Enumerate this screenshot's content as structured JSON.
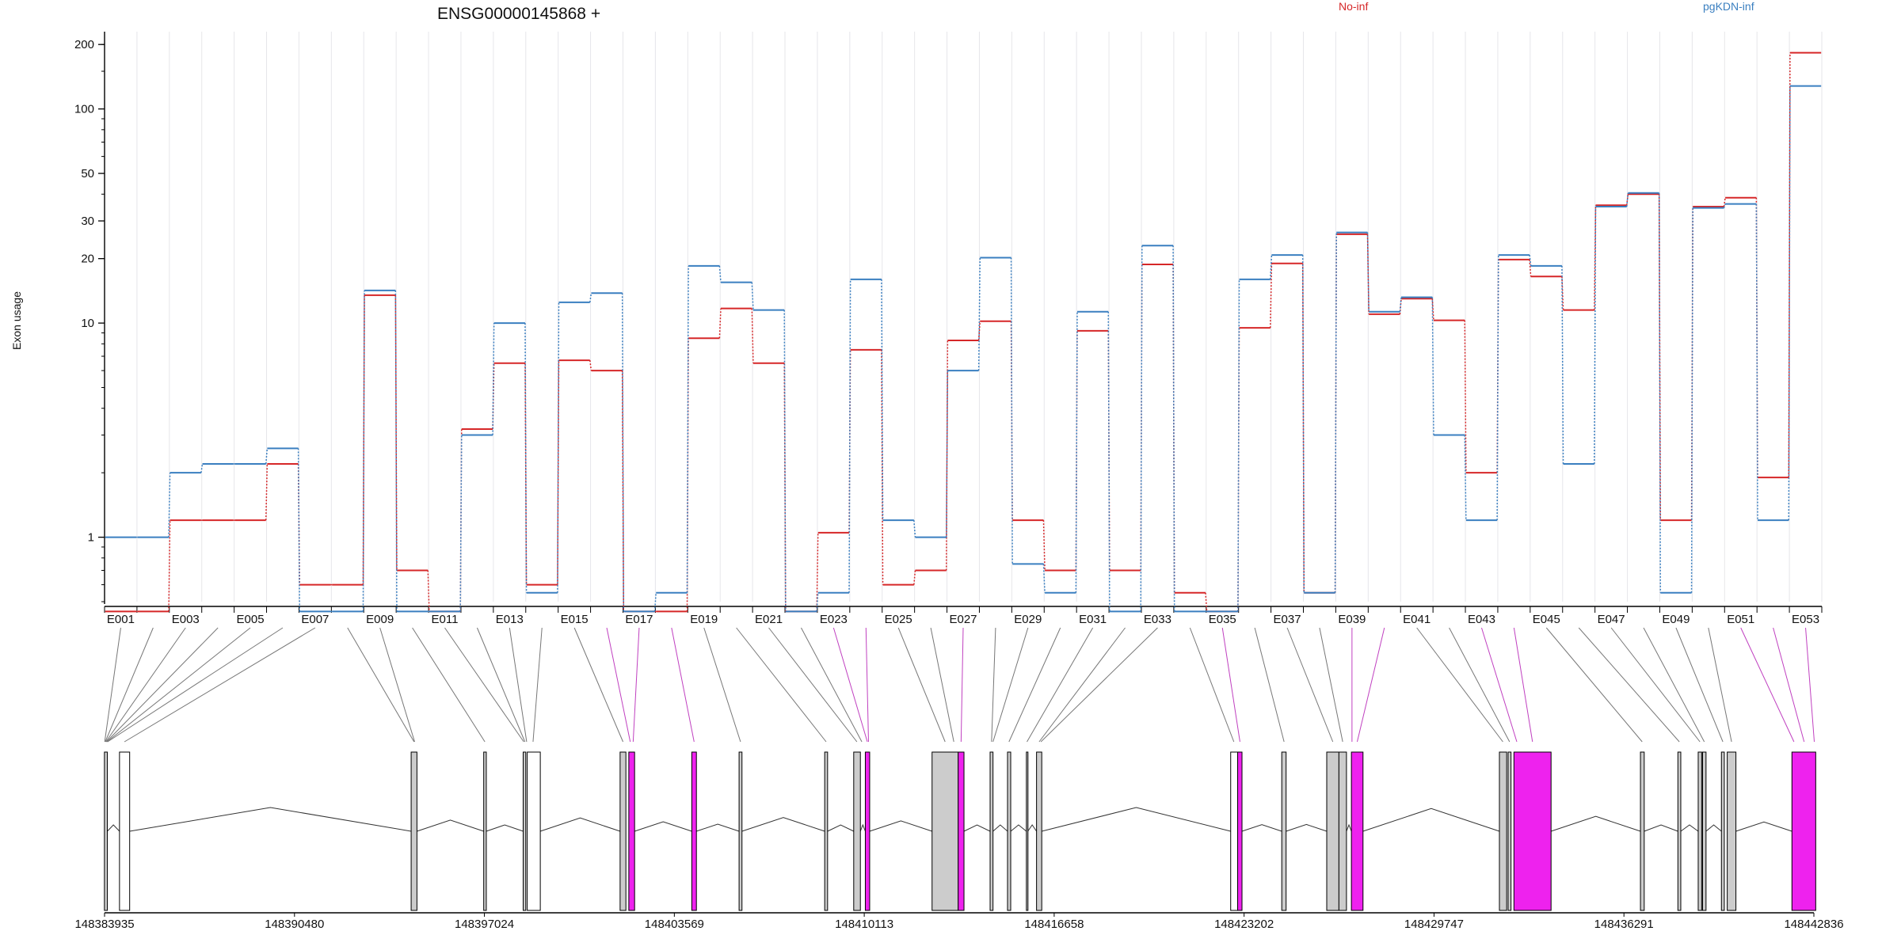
{
  "chart_data": {
    "type": "line",
    "title": "ENSG00000145868 +",
    "ylabel": "Exon usage",
    "xlabel": "",
    "yscale": "log",
    "ylim": [
      0.5,
      220
    ],
    "yticks": [
      1,
      10,
      20,
      30,
      50,
      100,
      200
    ],
    "ytick_labels": [
      "1",
      "10",
      "20",
      "30",
      "50",
      "100",
      "200"
    ],
    "grid": "vertical",
    "legend_position": "top",
    "exons": [
      "E001",
      "E002",
      "E003",
      "E004",
      "E005",
      "E006",
      "E007",
      "E008",
      "E009",
      "E010",
      "E011",
      "E012",
      "E013",
      "E014",
      "E015",
      "E016",
      "E017",
      "E018",
      "E019",
      "E020",
      "E021",
      "E022",
      "E023",
      "E024",
      "E025",
      "E026",
      "E027",
      "E028",
      "E029",
      "E030",
      "E031",
      "E032",
      "E033",
      "E034",
      "E035",
      "E036",
      "E037",
      "E038",
      "E039",
      "E040",
      "E041",
      "E042",
      "E043",
      "E044",
      "E045",
      "E046",
      "E047",
      "E048",
      "E049",
      "E050",
      "E051",
      "E052",
      "E053"
    ],
    "x_tick_labels": [
      "E001",
      "E003",
      "E005",
      "E007",
      "E009",
      "E011",
      "E013",
      "E015",
      "E017",
      "E019",
      "E021",
      "E023",
      "E025",
      "E027",
      "E029",
      "E031",
      "E033",
      "E035",
      "E037",
      "E039",
      "E041",
      "E043",
      "E045",
      "E047",
      "E049",
      "E051",
      "E053"
    ],
    "series": [
      {
        "name": "No-inf",
        "color": "#d62728",
        "values": [
          0.45,
          0.45,
          1.2,
          1.2,
          1.2,
          2.2,
          0.6,
          0.6,
          13.5,
          0.7,
          0.45,
          3.2,
          6.5,
          0.6,
          6.7,
          6.0,
          0.45,
          0.45,
          8.5,
          11.7,
          6.5,
          0.45,
          1.05,
          7.5,
          0.6,
          0.7,
          8.3,
          10.2,
          1.2,
          0.7,
          9.2,
          0.7,
          18.8,
          0.55,
          0.45,
          9.5,
          19.0,
          0.55,
          26.0,
          11.0,
          13.0,
          10.3,
          2.0,
          19.8,
          16.5,
          11.5,
          35.5,
          40.0,
          1.2,
          35.0,
          38.5,
          1.9,
          183
        ]
      },
      {
        "name": "pgKDN-inf",
        "color": "#3a7fc0",
        "values": [
          1.0,
          1.0,
          2.0,
          2.2,
          2.2,
          2.6,
          0.45,
          0.45,
          14.2,
          0.45,
          0.45,
          3.0,
          10.0,
          0.55,
          12.5,
          13.8,
          0.45,
          0.55,
          18.5,
          15.5,
          11.5,
          0.45,
          0.55,
          16.0,
          1.2,
          1.0,
          6.0,
          20.2,
          0.75,
          0.55,
          11.3,
          0.45,
          23.0,
          0.45,
          0.45,
          16.0,
          20.8,
          0.55,
          26.5,
          11.3,
          13.2,
          3.0,
          1.2,
          20.8,
          18.5,
          2.2,
          35.0,
          40.5,
          0.55,
          34.5,
          36.0,
          1.2,
          128
        ]
      }
    ],
    "gene_model": {
      "genomic_ticks": [
        "148383935",
        "148390480",
        "148397024",
        "148403569",
        "148410113",
        "148416658",
        "148423202",
        "148429747",
        "148436291",
        "148442836"
      ],
      "genomic_tick_values": [
        148383935,
        148390480,
        148397024,
        148403569,
        148410113,
        148416658,
        148423202,
        148429747,
        148436291,
        148442836
      ],
      "exon_fill_default": "#cccccc",
      "exon_fill_highlight": "#ee22ee",
      "exon_fill_empty": "#ffffff",
      "exon_intervals": [
        [
          148383930,
          148384030,
          "default"
        ],
        [
          148384450,
          148384800,
          "empty"
        ],
        [
          148394500,
          148394700,
          "default"
        ],
        [
          148397000,
          148397090,
          "default"
        ],
        [
          148398360,
          148398450,
          "default"
        ],
        [
          148398500,
          148398950,
          "empty"
        ],
        [
          148401700,
          148401900,
          "default"
        ],
        [
          148402000,
          148402200,
          "highlight"
        ],
        [
          148404170,
          148404330,
          "highlight"
        ],
        [
          148405800,
          148405900,
          "default"
        ],
        [
          148408750,
          148408850,
          "default"
        ],
        [
          148409750,
          148409980,
          "default"
        ],
        [
          148410150,
          148410300,
          "highlight"
        ],
        [
          148412450,
          148413350,
          "default"
        ],
        [
          148413350,
          148413550,
          "highlight"
        ],
        [
          148414450,
          148414550,
          "default"
        ],
        [
          148415050,
          148415160,
          "default"
        ],
        [
          148415700,
          148415750,
          "default"
        ],
        [
          148416050,
          148416230,
          "default"
        ],
        [
          148422740,
          148422980,
          "empty"
        ],
        [
          148422980,
          148423130,
          "highlight"
        ],
        [
          148424500,
          148424650,
          "default"
        ],
        [
          148426050,
          148426470,
          "default"
        ],
        [
          148426470,
          148426730,
          "default"
        ],
        [
          148426900,
          148427300,
          "highlight"
        ],
        [
          148432000,
          148432250,
          "default"
        ],
        [
          148432300,
          148432400,
          "default"
        ],
        [
          148432500,
          148433780,
          "highlight"
        ],
        [
          148436860,
          148436990,
          "default"
        ],
        [
          148438150,
          148438250,
          "default"
        ],
        [
          148438850,
          148438970,
          "default"
        ],
        [
          148439000,
          148439120,
          "default"
        ],
        [
          148439650,
          148439750,
          "default"
        ],
        [
          148439850,
          148440150,
          "default"
        ],
        [
          148442080,
          148442900,
          "highlight"
        ]
      ],
      "exon_bin_coords": [
        [
          148383940,
          "default"
        ],
        [
          148383960,
          "default"
        ],
        [
          148383980,
          "default"
        ],
        [
          148384000,
          "default"
        ],
        [
          148384020,
          "default"
        ],
        [
          148384040,
          "default"
        ],
        [
          148384620,
          "empty"
        ],
        [
          148394600,
          "default"
        ],
        [
          148394620,
          "default"
        ],
        [
          148397040,
          "default"
        ],
        [
          148398380,
          "default"
        ],
        [
          148398420,
          "default"
        ],
        [
          148398480,
          "default"
        ],
        [
          148398700,
          "empty"
        ],
        [
          148401800,
          "default"
        ],
        [
          148402050,
          "highlight"
        ],
        [
          148402150,
          "highlight"
        ],
        [
          148404250,
          "highlight"
        ],
        [
          148405850,
          "default"
        ],
        [
          148408800,
          "default"
        ],
        [
          148409860,
          "default"
        ],
        [
          148410030,
          "default"
        ],
        [
          148410220,
          "highlight"
        ],
        [
          148410260,
          "highlight"
        ],
        [
          148412900,
          "default"
        ],
        [
          148413200,
          "default"
        ],
        [
          148413450,
          "highlight"
        ],
        [
          148414500,
          "default"
        ],
        [
          148414550,
          "default"
        ],
        [
          148415100,
          "default"
        ],
        [
          148415720,
          "default"
        ],
        [
          148416140,
          "default"
        ],
        [
          148416200,
          "default"
        ],
        [
          148422850,
          "empty"
        ],
        [
          148423060,
          "highlight"
        ],
        [
          148424580,
          "default"
        ],
        [
          148426260,
          "default"
        ],
        [
          148426600,
          "default"
        ],
        [
          148426920,
          "highlight"
        ],
        [
          148427100,
          "highlight"
        ],
        [
          148432120,
          "default"
        ],
        [
          148432350,
          "default"
        ],
        [
          148432600,
          "highlight"
        ],
        [
          148433140,
          "highlight"
        ],
        [
          148436920,
          "default"
        ],
        [
          148438200,
          "default"
        ],
        [
          148438910,
          "default"
        ],
        [
          148439060,
          "default"
        ],
        [
          148439700,
          "default"
        ],
        [
          148440000,
          "default"
        ],
        [
          148442150,
          "highlight"
        ],
        [
          148442500,
          "highlight"
        ],
        [
          148442850,
          "highlight"
        ]
      ]
    }
  }
}
